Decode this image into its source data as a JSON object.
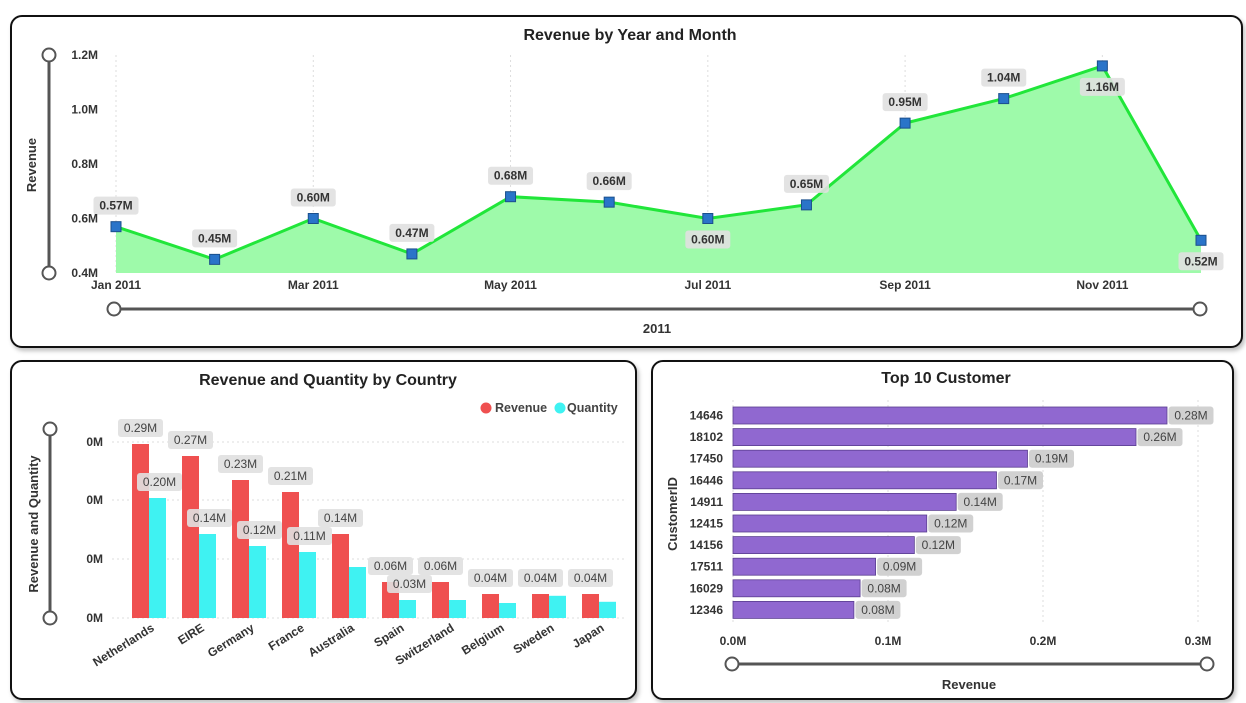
{
  "colors": {
    "area_fill": "#9efaaa",
    "line": "#21e63a",
    "marker": "#2a74c9",
    "revenue": "#ef5050",
    "quantity": "#3ff2f2",
    "customer_bar": "#9068d0",
    "label_bg": "#e0e0e0"
  },
  "chart_data": [
    {
      "type": "area",
      "title": "Revenue by Year and Month",
      "ylabel": "Revenue",
      "xlabel": "2011",
      "ylim": [
        0.4,
        1.2
      ],
      "yticks": [
        "0.4M",
        "0.6M",
        "0.8M",
        "1.0M",
        "1.2M"
      ],
      "xticks": [
        "Jan 2011",
        "Mar 2011",
        "May 2011",
        "Jul 2011",
        "Sep 2011",
        "Nov 2011"
      ],
      "grid": true,
      "values": [
        0.57,
        0.45,
        0.6,
        0.47,
        0.68,
        0.66,
        0.6,
        0.65,
        0.95,
        1.04,
        1.16,
        0.52
      ],
      "labels": [
        "0.57M",
        "0.45M",
        "0.60M",
        "0.47M",
        "0.68M",
        "0.66M",
        "0.60M",
        "0.65M",
        "0.95M",
        "1.04M",
        "1.16M",
        "0.52M"
      ]
    },
    {
      "type": "bar",
      "title": "Revenue and Quantity by Country",
      "ylabel": "Revenue and Quantity",
      "legend_position": "top-right",
      "yticks": [
        "0M",
        "0M",
        "0M",
        "0M"
      ],
      "ylim": [
        0,
        0.32
      ],
      "categories": [
        "Netherlands",
        "EIRE",
        "Germany",
        "France",
        "Australia",
        "Spain",
        "Switzerland",
        "Belgium",
        "Sweden",
        "Japan"
      ],
      "series": [
        {
          "name": "Revenue",
          "values": [
            0.29,
            0.27,
            0.23,
            0.21,
            0.14,
            0.06,
            0.06,
            0.04,
            0.04,
            0.04
          ],
          "labels": [
            "0.29M",
            "0.27M",
            "0.23M",
            "0.21M",
            "0.14M",
            "0.06M",
            "0.06M",
            "0.04M",
            "0.04M",
            "0.04M"
          ]
        },
        {
          "name": "Quantity",
          "values": [
            0.2,
            0.14,
            0.12,
            0.11,
            0.085,
            0.03,
            0.03,
            0.025,
            0.037,
            0.027
          ],
          "labels": [
            "0.20M",
            "0.14M",
            "0.12M",
            "0.11M",
            "",
            "0.03M",
            "",
            "",
            "",
            ""
          ]
        }
      ]
    },
    {
      "type": "bar",
      "orientation": "horizontal",
      "title": "Top 10 Customer",
      "ylabel": "CustomerID",
      "xlabel": "Revenue",
      "xlim": [
        0,
        0.3
      ],
      "xticks": [
        "0.0M",
        "0.1M",
        "0.2M",
        "0.3M"
      ],
      "categories": [
        "14646",
        "18102",
        "17450",
        "16446",
        "14911",
        "12415",
        "14156",
        "17511",
        "16029",
        "12346"
      ],
      "values": [
        0.28,
        0.26,
        0.19,
        0.17,
        0.144,
        0.125,
        0.117,
        0.092,
        0.082,
        0.078
      ],
      "labels": [
        "0.28M",
        "0.26M",
        "0.19M",
        "0.17M",
        "0.14M",
        "0.12M",
        "0.12M",
        "0.09M",
        "0.08M",
        "0.08M"
      ]
    }
  ]
}
